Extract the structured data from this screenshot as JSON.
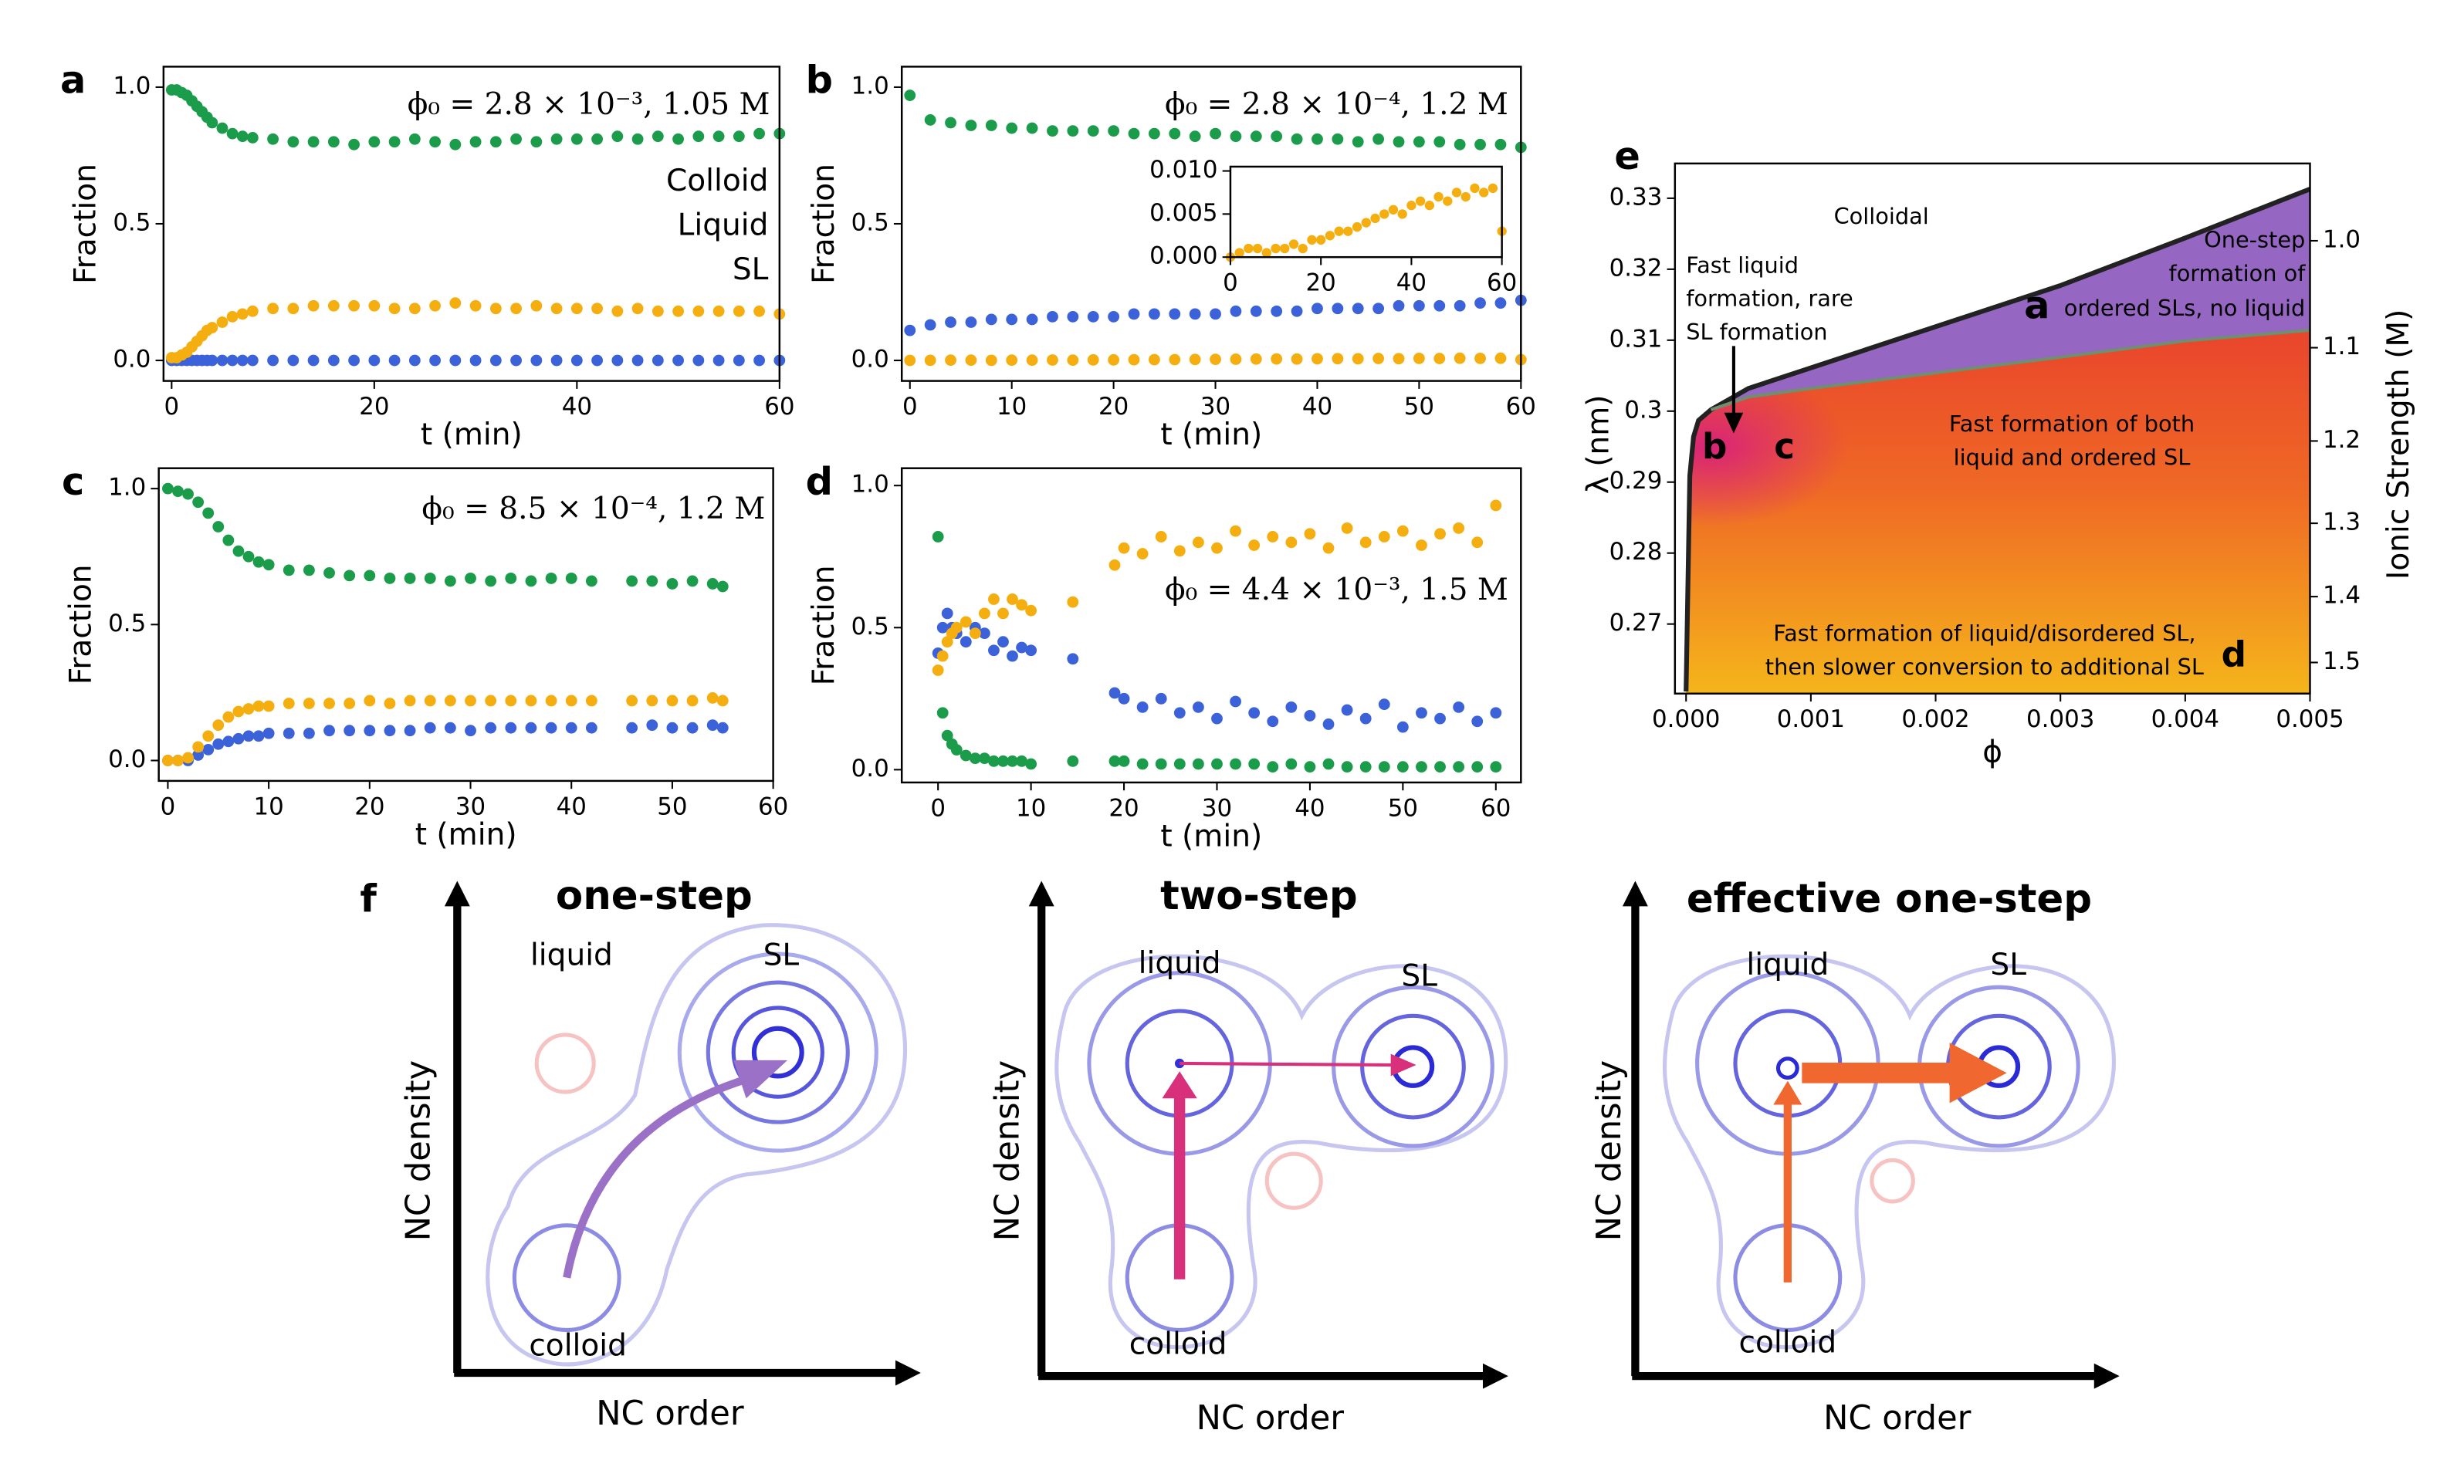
{
  "chart_data": [
    {
      "type": "scatter",
      "panel_label": "a",
      "title": "ϕ₀ = 2.8 × 10⁻³, 1.05 M",
      "x_label": "t (min)",
      "y_label": "Fraction",
      "legend": "right",
      "x": [
        0,
        0.5,
        1,
        1.5,
        2,
        2.5,
        3,
        3.5,
        4,
        5,
        6,
        7,
        8,
        10,
        12,
        14,
        16,
        18,
        20,
        22,
        24,
        26,
        28,
        30,
        32,
        34,
        36,
        38,
        40,
        42,
        44,
        46,
        48,
        50,
        52,
        54,
        56,
        58,
        60
      ],
      "series": [
        {
          "name": "Colloid",
          "color": "#1b9c4b",
          "values": [
            0.99,
            0.99,
            0.98,
            0.97,
            0.95,
            0.93,
            0.91,
            0.89,
            0.87,
            0.85,
            0.83,
            0.82,
            0.815,
            0.81,
            0.8,
            0.8,
            0.8,
            0.79,
            0.8,
            0.8,
            0.81,
            0.8,
            0.79,
            0.8,
            0.8,
            0.81,
            0.8,
            0.81,
            0.81,
            0.81,
            0.82,
            0.81,
            0.82,
            0.81,
            0.82,
            0.82,
            0.82,
            0.83,
            0.83
          ]
        },
        {
          "name": "Liquid",
          "color": "#3b62d9",
          "values": [
            0,
            0,
            0,
            0,
            0,
            0,
            0,
            0,
            0,
            0,
            0,
            0,
            0,
            0,
            0,
            0,
            0,
            0,
            0,
            0,
            0,
            0,
            0,
            0,
            0,
            0,
            0,
            0,
            0,
            0,
            0,
            0,
            0,
            0,
            0,
            0,
            0,
            0,
            0
          ]
        },
        {
          "name": "SL",
          "color": "#f5ae0f",
          "values": [
            0.01,
            0.01,
            0.02,
            0.03,
            0.05,
            0.07,
            0.09,
            0.11,
            0.12,
            0.14,
            0.16,
            0.17,
            0.18,
            0.19,
            0.19,
            0.2,
            0.2,
            0.2,
            0.2,
            0.19,
            0.19,
            0.2,
            0.21,
            0.2,
            0.19,
            0.19,
            0.2,
            0.19,
            0.19,
            0.19,
            0.18,
            0.19,
            0.18,
            0.18,
            0.18,
            0.18,
            0.18,
            0.18,
            0.17
          ]
        }
      ],
      "xlim": [
        -0.8,
        60
      ],
      "xticks": [
        0,
        20,
        40,
        60
      ],
      "ylim": [
        -0.075,
        1.075
      ],
      "yticks": [
        {
          "value": 0,
          "label": "0.0"
        },
        {
          "value": 0.5,
          "label": "0.5"
        },
        {
          "value": 1,
          "label": "1.0"
        }
      ]
    },
    {
      "type": "scatter",
      "panel_label": "b",
      "title": "ϕ₀ = 2.8 × 10⁻⁴, 1.2 M",
      "x_label": "t (min)",
      "y_label": "Fraction",
      "x": [
        0,
        2,
        4,
        6,
        8,
        10,
        12,
        14,
        16,
        18,
        20,
        22,
        24,
        26,
        28,
        30,
        32,
        34,
        36,
        38,
        40,
        42,
        44,
        46,
        48,
        50,
        52,
        54,
        56,
        58,
        60
      ],
      "series": [
        {
          "name": "Colloid",
          "color": "#1b9c4b",
          "values": [
            0.97,
            0.88,
            0.87,
            0.86,
            0.86,
            0.85,
            0.85,
            0.84,
            0.84,
            0.84,
            0.84,
            0.83,
            0.83,
            0.83,
            0.82,
            0.83,
            0.82,
            0.82,
            0.82,
            0.81,
            0.81,
            0.81,
            0.8,
            0.81,
            0.8,
            0.8,
            0.8,
            0.79,
            0.79,
            0.79,
            0.78
          ]
        },
        {
          "name": "Liquid",
          "color": "#3b62d9",
          "values": [
            0.11,
            0.13,
            0.14,
            0.14,
            0.15,
            0.15,
            0.15,
            0.16,
            0.16,
            0.16,
            0.16,
            0.17,
            0.17,
            0.17,
            0.17,
            0.17,
            0.18,
            0.18,
            0.18,
            0.18,
            0.19,
            0.19,
            0.19,
            0.19,
            0.2,
            0.2,
            0.2,
            0.2,
            0.21,
            0.21,
            0.22
          ]
        },
        {
          "name": "SL",
          "color": "#f5ae0f",
          "values": [
            0,
            0.0005,
            0.001,
            0.001,
            0.0005,
            0.001,
            0.001,
            0.0015,
            0.001,
            0.002,
            0.002,
            0.0025,
            0.003,
            0.003,
            0.0035,
            0.004,
            0.0045,
            0.005,
            0.0055,
            0.005,
            0.006,
            0.0065,
            0.006,
            0.007,
            0.0065,
            0.0075,
            0.007,
            0.008,
            0.0075,
            0.008,
            0.003
          ]
        }
      ],
      "xlim": [
        -0.8,
        60
      ],
      "xticks": [
        0,
        10,
        20,
        30,
        40,
        50,
        60
      ],
      "ylim": [
        -0.075,
        1.075
      ],
      "yticks": [
        {
          "value": 0,
          "label": "0.0"
        },
        {
          "value": 0.5,
          "label": "0.5"
        },
        {
          "value": 1,
          "label": "1.0"
        }
      ],
      "inset": {
        "series": [
          "SL"
        ],
        "xlim": [
          0,
          60
        ],
        "xticks": [
          0,
          20,
          40,
          60
        ],
        "ylim": [
          0,
          0.0105
        ],
        "yticks": [
          {
            "value": 0,
            "label": "0.000"
          },
          {
            "value": 0.005,
            "label": "0.005"
          },
          {
            "value": 0.01,
            "label": "0.010"
          }
        ]
      }
    },
    {
      "type": "scatter",
      "panel_label": "c",
      "title": "ϕ₀ = 8.5 × 10⁻⁴, 1.2 M",
      "x_label": "t (min)",
      "y_label": "Fraction",
      "x": [
        0,
        1,
        2,
        3,
        4,
        5,
        6,
        7,
        8,
        9,
        10,
        12,
        14,
        16,
        18,
        20,
        22,
        24,
        26,
        28,
        30,
        32,
        34,
        36,
        38,
        40,
        42,
        46,
        48,
        50,
        52,
        54,
        55
      ],
      "series": [
        {
          "name": "Colloid",
          "color": "#1b9c4b",
          "values": [
            1.0,
            0.99,
            0.98,
            0.95,
            0.91,
            0.86,
            0.81,
            0.77,
            0.75,
            0.73,
            0.72,
            0.7,
            0.7,
            0.69,
            0.68,
            0.68,
            0.67,
            0.67,
            0.67,
            0.66,
            0.67,
            0.66,
            0.67,
            0.66,
            0.67,
            0.67,
            0.66,
            0.66,
            0.66,
            0.65,
            0.66,
            0.65,
            0.64
          ]
        },
        {
          "name": "Liquid",
          "color": "#3b62d9",
          "values": [
            0,
            0,
            0,
            0.02,
            0.04,
            0.06,
            0.07,
            0.08,
            0.09,
            0.09,
            0.1,
            0.1,
            0.1,
            0.11,
            0.11,
            0.11,
            0.11,
            0.11,
            0.12,
            0.12,
            0.11,
            0.12,
            0.12,
            0.12,
            0.12,
            0.12,
            0.12,
            0.12,
            0.13,
            0.12,
            0.12,
            0.13,
            0.12
          ]
        },
        {
          "name": "SL",
          "color": "#f5ae0f",
          "values": [
            0,
            0,
            0.01,
            0.05,
            0.09,
            0.13,
            0.16,
            0.18,
            0.19,
            0.2,
            0.2,
            0.21,
            0.21,
            0.21,
            0.21,
            0.22,
            0.21,
            0.22,
            0.22,
            0.22,
            0.22,
            0.22,
            0.22,
            0.22,
            0.22,
            0.22,
            0.22,
            0.22,
            0.22,
            0.22,
            0.22,
            0.23,
            0.22
          ]
        }
      ],
      "xlim": [
        -0.9,
        60
      ],
      "xticks": [
        0,
        10,
        20,
        30,
        40,
        50,
        60
      ],
      "ylim": [
        -0.075,
        1.075
      ],
      "yticks": [
        {
          "value": 0,
          "label": "0.0"
        },
        {
          "value": 0.5,
          "label": "0.5"
        },
        {
          "value": 1,
          "label": "1.0"
        }
      ]
    },
    {
      "type": "scatter",
      "panel_label": "d",
      "title": "ϕ₀ = 4.4 × 10⁻³, 1.5 M",
      "x_label": "t (min)",
      "y_label": "Fraction",
      "x": [
        0,
        0.5,
        1,
        1.5,
        2,
        3,
        4,
        5,
        6,
        7,
        8,
        9,
        10,
        14.5,
        19,
        20,
        22,
        24,
        26,
        28,
        30,
        32,
        34,
        36,
        38,
        40,
        42,
        44,
        46,
        48,
        50,
        52,
        54,
        56,
        58,
        60
      ],
      "series": [
        {
          "name": "Colloid",
          "color": "#1b9c4b",
          "values": [
            0.82,
            0.2,
            0.12,
            0.09,
            0.07,
            0.05,
            0.04,
            0.04,
            0.03,
            0.03,
            0.03,
            0.03,
            0.02,
            0.03,
            0.03,
            0.03,
            0.02,
            0.02,
            0.02,
            0.02,
            0.02,
            0.02,
            0.02,
            0.01,
            0.02,
            0.01,
            0.02,
            0.01,
            0.01,
            0.01,
            0.01,
            0.01,
            0.01,
            0.01,
            0.01,
            0.01
          ]
        },
        {
          "name": "Liquid",
          "color": "#3b62d9",
          "values": [
            0.41,
            0.5,
            0.55,
            0.5,
            0.48,
            0.45,
            0.5,
            0.48,
            0.42,
            0.45,
            0.4,
            0.43,
            0.42,
            0.39,
            0.27,
            0.25,
            0.22,
            0.25,
            0.2,
            0.22,
            0.18,
            0.24,
            0.2,
            0.17,
            0.22,
            0.19,
            0.16,
            0.21,
            0.18,
            0.23,
            0.15,
            0.2,
            0.18,
            0.22,
            0.17,
            0.2
          ]
        },
        {
          "name": "SL",
          "color": "#f5ae0f",
          "values": [
            0.35,
            0.4,
            0.45,
            0.48,
            0.5,
            0.52,
            0.48,
            0.55,
            0.6,
            0.55,
            0.6,
            0.58,
            0.56,
            0.59,
            0.72,
            0.78,
            0.76,
            0.82,
            0.77,
            0.8,
            0.78,
            0.84,
            0.79,
            0.82,
            0.8,
            0.83,
            0.78,
            0.85,
            0.8,
            0.82,
            0.84,
            0.79,
            0.83,
            0.85,
            0.8,
            0.93
          ]
        }
      ],
      "xlim": [
        -3.9,
        62.7
      ],
      "xticks": [
        0,
        10,
        20,
        30,
        40,
        50,
        60
      ],
      "ylim": [
        -0.045,
        1.061
      ],
      "yticks": [
        {
          "value": 0,
          "label": "0.0"
        },
        {
          "value": 0.5,
          "label": "0.5"
        },
        {
          "value": 1,
          "label": "1.0"
        }
      ]
    },
    {
      "type": "area",
      "panel_label": "e",
      "x_label": "ϕ",
      "y_label": "λ (nm)",
      "y2_label": "Ionic Strength (M)",
      "x": [
        0,
        3e-05,
        6e-05,
        0.0001,
        0.0002,
        0.0005,
        0.001,
        0.002,
        0.003,
        0.004,
        0.005
      ],
      "series": [
        {
          "color": "#222222",
          "values": [
            0.2605,
            0.2909,
            0.2964,
            0.2987,
            0.3002,
            0.3032,
            0.3061,
            0.3119,
            0.3177,
            0.3244,
            0.3313
          ]
        },
        {
          "color": "#6f8f6e",
          "values": [
            null,
            null,
            null,
            null,
            0.3002,
            0.302,
            0.3032,
            0.3054,
            0.3076,
            0.3099,
            0.3114
          ]
        }
      ],
      "xlim": [
        -8.91e-05,
        0.005
      ],
      "xticks": [
        {
          "value": 0,
          "label": "0.000"
        },
        {
          "value": 0.001,
          "label": "0.001"
        },
        {
          "value": 0.002,
          "label": "0.002"
        },
        {
          "value": 0.003,
          "label": "0.003"
        },
        {
          "value": 0.004,
          "label": "0.004"
        },
        {
          "value": 0.005,
          "label": "0.005"
        }
      ],
      "ylim": [
        0.2602,
        0.3349
      ],
      "yticks": [
        0.27,
        0.28,
        0.29,
        0.3,
        0.31,
        0.32,
        0.33
      ],
      "y2lim": [
        0.936,
        1.551
      ],
      "y2scale": "inverse-sqrt",
      "y2ticks": [
        {
          "value": 1,
          "label": "1.0"
        },
        1.1,
        1.2,
        1.3,
        1.4,
        1.5
      ],
      "annotations": [
        "Colloidal",
        "Fast liquid",
        "formation, rare",
        "SL formation",
        "One-step",
        "formation of",
        "ordered SLs, no liquid",
        "a",
        "Fast formation of both",
        "liquid and ordered SL",
        "Fast formation of liquid/disordered SL,",
        "then slower conversion to additional SL",
        "b",
        "c",
        "d"
      ]
    }
  ],
  "diagram": {
    "panel_label": "f",
    "panels": [
      {
        "title": "one-step",
        "x_label": "NC order",
        "y_label": "NC density",
        "liquid": "liquid",
        "sl": "SL",
        "colloid": "colloid"
      },
      {
        "title": "two-step",
        "x_label": "NC order",
        "y_label": "NC density",
        "liquid": "liquid",
        "sl": "SL",
        "colloid": "colloid"
      },
      {
        "title": "effective one-step",
        "x_label": "NC order",
        "y_label": "NC density",
        "liquid": "liquid",
        "sl": "SL",
        "colloid": "colloid"
      }
    ]
  }
}
